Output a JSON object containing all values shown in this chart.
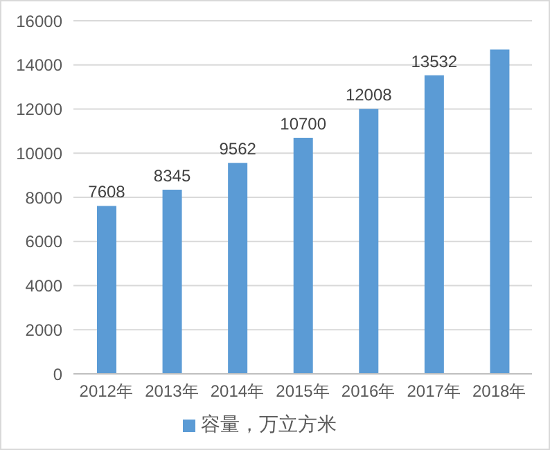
{
  "chart_data": {
    "type": "bar",
    "categories": [
      "2012年",
      "2013年",
      "2014年",
      "2015年",
      "2016年",
      "2017年",
      "2018年"
    ],
    "series": [
      {
        "name": "容量，万立方米",
        "color": "#5b9bd5",
        "values": [
          7608,
          8345,
          9562,
          10700,
          12008,
          13532,
          14700
        ],
        "value_labels": [
          "7608",
          "8345",
          "9562",
          "10700",
          "12008",
          "13532",
          null
        ]
      }
    ],
    "ylim": [
      0,
      16000
    ],
    "yticks": [
      0,
      2000,
      4000,
      6000,
      8000,
      10000,
      12000,
      14000,
      16000
    ],
    "grid": "y",
    "legend": "bottom"
  }
}
